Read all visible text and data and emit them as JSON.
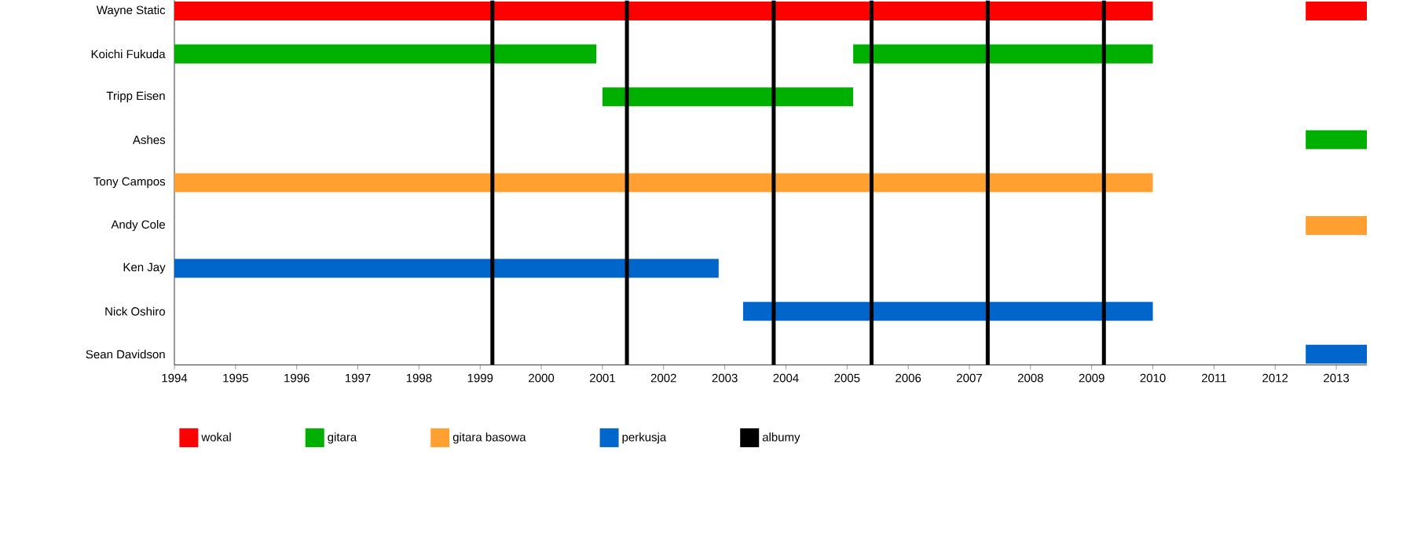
{
  "chart_data": {
    "type": "bar",
    "orientation": "horizontal",
    "categories": [
      "Wayne Static",
      "Koichi Fukuda",
      "Tripp Eisen",
      "Ashes",
      "Tony Campos",
      "Andy Cole",
      "Ken Jay",
      "Nick Oshiro",
      "Sean Davidson"
    ],
    "series": [
      {
        "name": "wokal",
        "color": "#ff0000",
        "base": [
          1994,
          null,
          null,
          null,
          null,
          null,
          null,
          null,
          null
        ],
        "values": [
          16,
          null,
          null,
          null,
          null,
          null,
          null,
          null,
          null
        ]
      },
      {
        "color": "#ff0000",
        "base": [
          2012.5,
          null,
          null,
          null,
          null,
          null,
          null,
          null,
          null
        ],
        "values": [
          1,
          null,
          null,
          null,
          null,
          null,
          null,
          null,
          null
        ]
      },
      {
        "name": "gitara",
        "color": "#00b000",
        "base": [
          null,
          1994,
          2001,
          2012.5,
          null,
          null,
          null,
          null,
          null
        ],
        "values": [
          null,
          6.9,
          4.1,
          1,
          null,
          null,
          null,
          null,
          null
        ]
      },
      {
        "color": "#00b000",
        "base": [
          null,
          2005.1,
          null,
          null,
          null,
          null,
          null,
          null,
          null
        ],
        "values": [
          null,
          4.9,
          null,
          null,
          null,
          null,
          null,
          null,
          null
        ]
      },
      {
        "name": "gitara basowa",
        "color": "#ffa030",
        "base": [
          null,
          null,
          null,
          null,
          1994,
          2012.5,
          null,
          null,
          null
        ],
        "values": [
          null,
          null,
          null,
          null,
          16,
          1,
          null,
          null,
          null
        ]
      },
      {
        "name": "perkusja",
        "color": "#0066cc",
        "base": [
          null,
          null,
          null,
          null,
          null,
          null,
          1994,
          2003.3,
          2012.5
        ],
        "values": [
          null,
          null,
          null,
          null,
          null,
          null,
          8.9,
          6.7,
          1
        ]
      }
    ],
    "ref_lines": [
      {
        "axis": "x",
        "value": 1999.2,
        "label": "albumy",
        "color": "#000000"
      },
      {
        "axis": "x",
        "value": 2001.4,
        "color": "#000000"
      },
      {
        "axis": "x",
        "value": 2003.8,
        "color": "#000000"
      },
      {
        "axis": "x",
        "value": 2005.4,
        "color": "#000000"
      },
      {
        "axis": "x",
        "value": 2007.3,
        "color": "#000000"
      },
      {
        "axis": "x",
        "value": 2009.2,
        "color": "#000000"
      }
    ],
    "xlim": [
      1994,
      2013.5
    ],
    "xticks": [
      1994,
      1995,
      1996,
      1997,
      1998,
      1999,
      2000,
      2001,
      2002,
      2003,
      2004,
      2005,
      2006,
      2007,
      2008,
      2009,
      2010,
      2011,
      2012,
      2013
    ],
    "legend": "bottom"
  }
}
